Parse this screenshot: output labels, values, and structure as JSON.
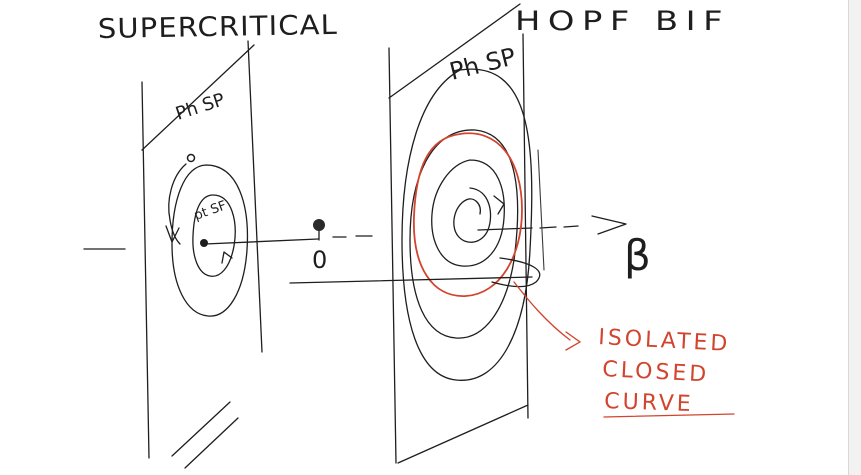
{
  "title_left": "SUPERCRITICAL",
  "title_right": "HOPF BIF",
  "left_plane_label": "Ph SP",
  "left_point_label": "pt SF",
  "right_plane_label": "Ph SP",
  "axis_origin_label": "0",
  "axis_param_label": "β",
  "annotation": [
    "ISOLATED",
    "CLOSED",
    "CURVE"
  ],
  "colors": {
    "ink": "#1e1e1e",
    "annotation": "#d2442e"
  }
}
